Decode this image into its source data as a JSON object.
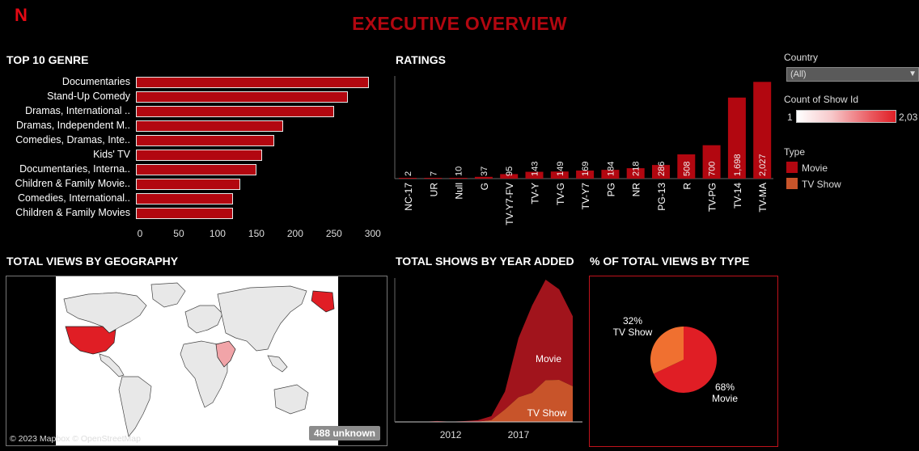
{
  "header": {
    "logo": "N",
    "title": "EXECUTIVE OVERVIEW"
  },
  "titles": {
    "genre": "TOP 10 GENRE",
    "ratings": "RATINGS",
    "geo": "TOTAL VIEWS BY GEOGRAPHY",
    "year": "TOTAL SHOWS BY YEAR ADDED",
    "type": "% OF TOTAL VIEWS BY TYPE"
  },
  "filters": {
    "country_label": "Country",
    "country_value": "(All)",
    "count_label": "Count of Show Id",
    "count_min": "1",
    "count_max": "2,03",
    "type_label": "Type",
    "type_items": [
      {
        "label": "Movie",
        "color": "#b20710"
      },
      {
        "label": "TV Show",
        "color": "#c8542a"
      }
    ]
  },
  "map": {
    "attribution": "© 2023 Mapbox © OpenStreetMap",
    "unknown_badge": "488 unknown"
  },
  "chart_data": [
    {
      "type": "bar",
      "orientation": "horizontal",
      "title": "TOP 10 GENRE",
      "categories": [
        "Documentaries",
        "Stand-Up Comedy",
        "Dramas, International ..",
        "Dramas, Independent M..",
        "Comedies, Dramas, Inte..",
        "Kids' TV",
        "Documentaries, Interna..",
        "Children & Family Movie..",
        "Comedies, International..",
        "Children & Family Movies"
      ],
      "values": [
        300,
        273,
        255,
        190,
        178,
        163,
        155,
        134,
        125,
        125
      ],
      "xlim": [
        0,
        320
      ],
      "xticks": [
        0,
        50,
        100,
        150,
        200,
        250,
        300
      ],
      "color": "#b20710"
    },
    {
      "type": "bar",
      "title": "RATINGS",
      "categories": [
        "NC-17",
        "UR",
        "Null",
        "G",
        "TV-Y7-FV",
        "TV-Y",
        "TV-G",
        "TV-Y7",
        "PG",
        "NR",
        "PG-13",
        "R",
        "TV-PG",
        "TV-14",
        "TV-MA"
      ],
      "values": [
        2,
        7,
        10,
        37,
        95,
        143,
        149,
        169,
        184,
        218,
        286,
        508,
        700,
        1698,
        2027
      ],
      "labels": [
        "2",
        "7",
        "10",
        "37",
        "95",
        "143",
        "149",
        "169",
        "184",
        "218",
        "286",
        "508",
        "700",
        "1,698",
        "2,027"
      ],
      "ylim": [
        0,
        2100
      ],
      "color": "#b20710"
    },
    {
      "type": "area",
      "title": "TOTAL SHOWS BY YEAR ADDED",
      "x": [
        2008,
        2009,
        2010,
        2011,
        2012,
        2013,
        2014,
        2015,
        2016,
        2017,
        2018,
        2019,
        2020,
        2021
      ],
      "xticks": [
        2012,
        2017
      ],
      "series": [
        {
          "name": "Movie",
          "values": [
            1,
            2,
            1,
            13,
            3,
            6,
            19,
            56,
            253,
            839,
            1237,
            1424,
            1284,
            993
          ],
          "color": "#a1141c"
        },
        {
          "name": "TV Show",
          "values": [
            0,
            0,
            0,
            0,
            0,
            5,
            5,
            26,
            176,
            349,
            412,
            592,
            595,
            505
          ],
          "color": "#c8542a"
        }
      ],
      "stacked": true
    },
    {
      "type": "pie",
      "title": "% OF TOTAL VIEWS BY TYPE",
      "categories": [
        "Movie",
        "TV Show"
      ],
      "values": [
        68,
        32
      ],
      "labels": [
        "68%",
        "32%"
      ],
      "colors": [
        "#e01e25",
        "#f07030"
      ]
    }
  ]
}
